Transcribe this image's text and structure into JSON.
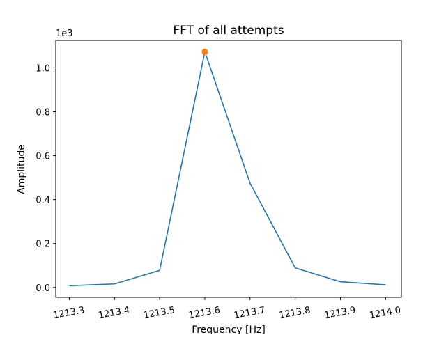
{
  "chart_data": {
    "type": "line",
    "title": "FFT of all attempts",
    "xlabel": "Frequency [Hz]",
    "ylabel": "Amplitude",
    "y_offset_label": "1e3",
    "xlim": [
      1213.27,
      1214.035
    ],
    "ylim": [
      -0.045,
      1.125
    ],
    "x_ticks": [
      1213.3,
      1213.4,
      1213.5,
      1213.6,
      1213.7,
      1213.8,
      1213.9,
      1214.0
    ],
    "x_tick_labels": [
      "1213.3",
      "1213.4",
      "1213.5",
      "1213.6",
      "1213.7",
      "1213.8",
      "1213.9",
      "1214.0"
    ],
    "y_ticks": [
      0.0,
      0.2,
      0.4,
      0.6,
      0.8,
      1.0
    ],
    "y_tick_labels": [
      "0.0",
      "0.2",
      "0.4",
      "0.6",
      "0.8",
      "1.0"
    ],
    "grid": false,
    "series": [
      {
        "color": "#1f77b4",
        "x": [
          1213.3,
          1213.4,
          1213.5,
          1213.6,
          1213.7,
          1213.8,
          1213.9,
          1214.0
        ],
        "y": [
          0.008,
          0.016,
          0.078,
          1.073,
          0.475,
          0.089,
          0.026,
          0.012
        ]
      }
    ],
    "peak_marker": {
      "color": "#ff7f0e",
      "x": 1213.6,
      "y": 1.073
    }
  }
}
